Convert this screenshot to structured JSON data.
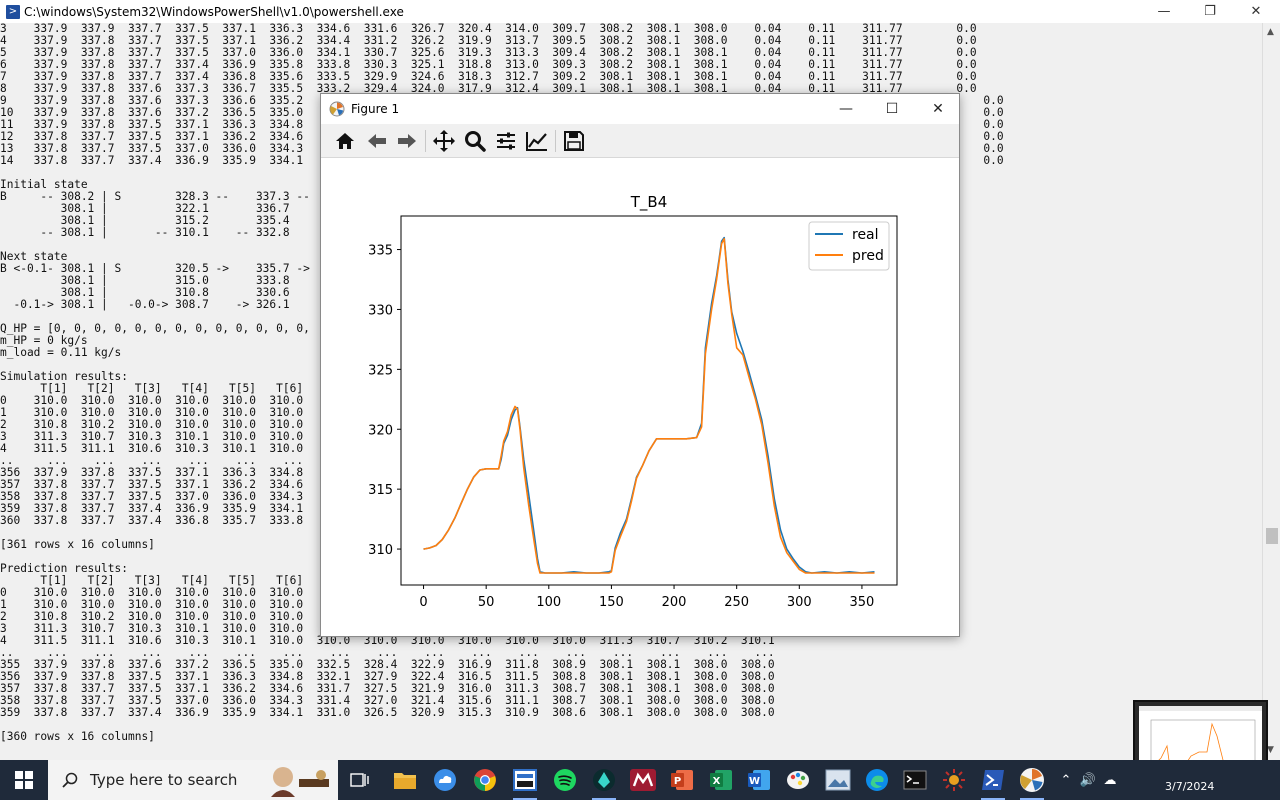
{
  "powershell": {
    "title": "C:\\windows\\System32\\WindowsPowerShell\\v1.0\\powershell.exe",
    "console_lines": [
      "3    337.9  337.9  337.7  337.5  337.1  336.3  334.6  331.6  326.7  320.4  314.0  309.7  308.2  308.1  308.0    0.04    0.11    311.77        0.0",
      "4    337.9  337.8  337.7  337.5  337.1  336.2  334.4  331.2  326.2  319.9  313.7  309.5  308.2  308.1  308.0    0.04    0.11    311.77        0.0",
      "5    337.9  337.8  337.7  337.5  337.0  336.0  334.1  330.7  325.6  319.3  313.3  309.4  308.2  308.1  308.1    0.04    0.11    311.77        0.0",
      "6    337.9  337.8  337.7  337.4  336.9  335.8  333.8  330.3  325.1  318.8  313.0  309.3  308.2  308.1  308.1    0.04    0.11    311.77        0.0",
      "7    337.9  337.8  337.7  337.4  336.8  335.6  333.5  329.9  324.6  318.3  312.7  309.2  308.1  308.1  308.1    0.04    0.11    311.77        0.0",
      "8    337.9  337.8  337.6  337.3  336.7  335.5  333.2  329.4  324.0  317.9  312.4  309.1  308.1  308.1  308.1    0.04    0.11    311.77        0.0",
      "9    337.9  337.8  337.6  337.3  336.6  335.2                                                                                          .77        0.0",
      "10   337.9  337.8  337.6  337.2  336.5  335.0                                                                                          .77        0.0",
      "11   337.9  337.8  337.5  337.1  336.3  334.8                                                                                          .77        0.0",
      "12   337.8  337.7  337.5  337.1  336.2  334.6                                                                                          .77        0.0",
      "13   337.8  337.7  337.5  337.0  336.0  334.3                                                                                          .77        0.0",
      "14   337.8  337.7  337.4  336.9  335.9  334.1                                                                                          .77        0.0",
      "",
      "Initial state",
      "B     -- 308.2 | S        328.3 --    337.3 --",
      "         308.1 |          322.1       336.7",
      "         308.1 |          315.2       335.4",
      "      -- 308.1 |       -- 310.1    -- 332.8",
      "",
      "Next state",
      "B <-0.1- 308.1 | S        320.5 ->    335.7 ->",
      "         308.1 |          315.0       333.8",
      "         308.1 |          310.8       330.6",
      "  -0.1-> 308.1 |   -0.0-> 308.7    -> 326.1",
      "",
      "Q_HP = [0, 0, 0, 0, 0, 0, 0, 0, 0, 0, 0, 0, 0,",
      "m_HP = 0 kg/s",
      "m_load = 0.11 kg/s",
      "",
      "Simulation results:",
      "      T[1]   T[2]   T[3]   T[4]   T[5]   T[6]",
      "0    310.0  310.0  310.0  310.0  310.0  310.0",
      "1    310.0  310.0  310.0  310.0  310.0  310.0",
      "2    310.8  310.2  310.0  310.0  310.0  310.0",
      "3    311.3  310.7  310.3  310.1  310.0  310.0",
      "4    311.5  311.1  310.6  310.3  310.1  310.0",
      "..     ...    ...    ...    ...    ...    ...",
      "356  337.9  337.8  337.5  337.1  336.3  334.8",
      "357  337.8  337.7  337.5  337.1  336.2  334.6",
      "358  337.8  337.7  337.5  337.0  336.0  334.3",
      "359  337.8  337.7  337.4  336.9  335.9  334.1",
      "360  337.8  337.7  337.4  336.8  335.7  333.8",
      "",
      "[361 rows x 16 columns]",
      "",
      "Prediction results:",
      "      T[1]   T[2]   T[3]   T[4]   T[5]   T[6]",
      "0    310.0  310.0  310.0  310.0  310.0  310.0",
      "1    310.0  310.0  310.0  310.0  310.0  310.0",
      "2    310.8  310.2  310.0  310.0  310.0  310.0",
      "3    311.3  310.7  310.3  310.1  310.0  310.0",
      "4    311.5  311.1  310.6  310.3  310.1  310.0  310.0  310.0  310.0  310.0  310.0  310.0  311.3  310.7  310.2  310.1",
      "..     ...    ...    ...    ...    ...    ...    ...    ...    ...    ...    ...    ...    ...    ...    ...    ...",
      "355  337.9  337.8  337.6  337.2  336.5  335.0  332.5  328.4  322.9  316.9  311.8  308.9  308.1  308.1  308.0  308.0",
      "356  337.9  337.8  337.5  337.1  336.3  334.8  332.1  327.9  322.4  316.5  311.5  308.8  308.1  308.1  308.0  308.0",
      "357  337.8  337.7  337.5  337.1  336.2  334.6  331.7  327.5  321.9  316.0  311.3  308.7  308.1  308.1  308.0  308.0",
      "358  337.8  337.7  337.5  337.0  336.0  334.3  331.4  327.0  321.4  315.6  311.1  308.7  308.1  308.0  308.0  308.0",
      "359  337.8  337.7  337.4  336.9  335.9  334.1  331.0  326.5  320.9  315.3  310.9  308.6  308.1  308.0  308.0  308.0",
      "",
      "[360 rows x 16 columns]"
    ]
  },
  "figure": {
    "title": "Figure 1",
    "toolbar": [
      "home-icon",
      "back-arrow-icon",
      "forward-arrow-icon",
      "pan-icon",
      "zoom-icon",
      "subplots-icon",
      "edit-axis-icon",
      "save-icon"
    ]
  },
  "chart_data": {
    "type": "line",
    "title": "T_B4",
    "xlabel": "",
    "ylabel": "",
    "xlim": [
      -18,
      378
    ],
    "ylim": [
      307.0,
      337.8
    ],
    "xticks": [
      0,
      50,
      100,
      150,
      200,
      250,
      300,
      350
    ],
    "yticks": [
      310,
      315,
      320,
      325,
      330,
      335
    ],
    "legend": "top-right",
    "series": [
      {
        "name": "real",
        "color": "#1f77b4",
        "points": [
          [
            0,
            310.0
          ],
          [
            5,
            310.1
          ],
          [
            10,
            310.3
          ],
          [
            15,
            310.8
          ],
          [
            20,
            311.6
          ],
          [
            25,
            312.6
          ],
          [
            30,
            313.8
          ],
          [
            35,
            315.0
          ],
          [
            40,
            316.0
          ],
          [
            45,
            316.6
          ],
          [
            50,
            316.7
          ],
          [
            55,
            316.7
          ],
          [
            60,
            316.7
          ],
          [
            62,
            317.5
          ],
          [
            64,
            318.8
          ],
          [
            67,
            319.5
          ],
          [
            70,
            320.8
          ],
          [
            73,
            321.6
          ],
          [
            75,
            321.8
          ],
          [
            77,
            320.2
          ],
          [
            80,
            317.5
          ],
          [
            84,
            314.5
          ],
          [
            88,
            311.5
          ],
          [
            91,
            309.2
          ],
          [
            93,
            308.1
          ],
          [
            97,
            308.0
          ],
          [
            105,
            308.0
          ],
          [
            110,
            308.0
          ],
          [
            120,
            308.1
          ],
          [
            130,
            308.0
          ],
          [
            140,
            308.0
          ],
          [
            148,
            308.1
          ],
          [
            150,
            308.2
          ],
          [
            153,
            310.1
          ],
          [
            157,
            311.3
          ],
          [
            162,
            312.5
          ],
          [
            166,
            314.2
          ],
          [
            170,
            316.0
          ],
          [
            175,
            317.0
          ],
          [
            180,
            318.2
          ],
          [
            186,
            319.2
          ],
          [
            190,
            319.2
          ],
          [
            200,
            319.2
          ],
          [
            210,
            319.2
          ],
          [
            218,
            319.3
          ],
          [
            222,
            320.5
          ],
          [
            225,
            326.8
          ],
          [
            230,
            330.5
          ],
          [
            234,
            332.8
          ],
          [
            236,
            334.2
          ],
          [
            238,
            335.7
          ],
          [
            240,
            336.0
          ],
          [
            243,
            332.5
          ],
          [
            246,
            329.8
          ],
          [
            250,
            328.0
          ],
          [
            255,
            326.5
          ],
          [
            260,
            324.7
          ],
          [
            265,
            322.8
          ],
          [
            270,
            320.8
          ],
          [
            275,
            317.8
          ],
          [
            280,
            314.2
          ],
          [
            285,
            311.6
          ],
          [
            290,
            310.0
          ],
          [
            295,
            309.2
          ],
          [
            300,
            308.5
          ],
          [
            305,
            308.1
          ],
          [
            310,
            308.0
          ],
          [
            320,
            308.1
          ],
          [
            330,
            308.0
          ],
          [
            340,
            308.1
          ],
          [
            350,
            308.0
          ],
          [
            360,
            308.1
          ]
        ]
      },
      {
        "name": "pred",
        "color": "#ff7f0e",
        "points": [
          [
            0,
            310.0
          ],
          [
            5,
            310.1
          ],
          [
            10,
            310.3
          ],
          [
            15,
            310.8
          ],
          [
            20,
            311.6
          ],
          [
            25,
            312.6
          ],
          [
            30,
            313.8
          ],
          [
            35,
            315.0
          ],
          [
            40,
            316.0
          ],
          [
            45,
            316.6
          ],
          [
            50,
            316.7
          ],
          [
            55,
            316.7
          ],
          [
            60,
            316.7
          ],
          [
            62,
            317.8
          ],
          [
            64,
            319.0
          ],
          [
            67,
            319.8
          ],
          [
            70,
            321.2
          ],
          [
            73,
            321.9
          ],
          [
            75,
            321.7
          ],
          [
            77,
            320.0
          ],
          [
            80,
            316.8
          ],
          [
            84,
            313.6
          ],
          [
            88,
            310.8
          ],
          [
            91,
            308.8
          ],
          [
            93,
            308.0
          ],
          [
            97,
            308.0
          ],
          [
            105,
            308.0
          ],
          [
            110,
            308.0
          ],
          [
            120,
            308.0
          ],
          [
            130,
            308.0
          ],
          [
            140,
            308.0
          ],
          [
            148,
            308.0
          ],
          [
            150,
            308.1
          ],
          [
            153,
            309.9
          ],
          [
            157,
            311.0
          ],
          [
            162,
            312.3
          ],
          [
            166,
            314.0
          ],
          [
            170,
            315.9
          ],
          [
            175,
            317.0
          ],
          [
            180,
            318.2
          ],
          [
            186,
            319.2
          ],
          [
            190,
            319.2
          ],
          [
            200,
            319.2
          ],
          [
            210,
            319.2
          ],
          [
            218,
            319.3
          ],
          [
            222,
            320.2
          ],
          [
            225,
            326.3
          ],
          [
            230,
            330.0
          ],
          [
            234,
            332.5
          ],
          [
            236,
            334.0
          ],
          [
            238,
            335.5
          ],
          [
            240,
            335.9
          ],
          [
            243,
            332.2
          ],
          [
            246,
            329.6
          ],
          [
            250,
            326.8
          ],
          [
            255,
            326.2
          ],
          [
            260,
            324.3
          ],
          [
            265,
            322.5
          ],
          [
            270,
            320.4
          ],
          [
            275,
            317.2
          ],
          [
            280,
            313.6
          ],
          [
            285,
            311.0
          ],
          [
            290,
            309.7
          ],
          [
            295,
            309.0
          ],
          [
            300,
            308.3
          ],
          [
            305,
            308.0
          ],
          [
            310,
            308.0
          ],
          [
            320,
            308.0
          ],
          [
            330,
            308.0
          ],
          [
            340,
            308.0
          ],
          [
            350,
            308.0
          ],
          [
            360,
            308.0
          ]
        ]
      }
    ]
  },
  "taskbar": {
    "search_placeholder": "Type here to search",
    "date_partial": "3/7/2024",
    "apps": [
      "widget-character-icon",
      "task-view-icon",
      "file-explorer-icon",
      "cloud-app-icon",
      "chrome-icon",
      "screenshot-tool-icon",
      "spotify-icon",
      "vpn-app-icon",
      "mendeley-icon",
      "powerpoint-icon",
      "excel-icon",
      "word-icon",
      "paint-app-icon",
      "image-viewer-icon",
      "edge-icon",
      "terminal-icon",
      "settings-sun-icon",
      "powershell-icon",
      "matplotlib-icon"
    ]
  }
}
